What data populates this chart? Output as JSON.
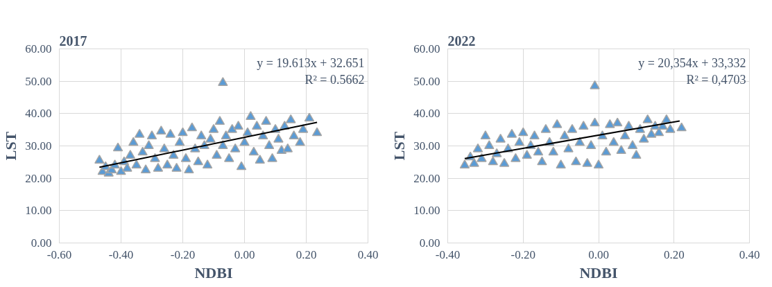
{
  "chart_data": [
    {
      "type": "scatter",
      "title": "2017",
      "xlabel": "NDBI",
      "ylabel": "LST",
      "xlim": [
        -0.6,
        0.4
      ],
      "ylim": [
        0,
        60
      ],
      "xticks": [
        {
          "value": -0.6,
          "label": "-0.60"
        },
        {
          "value": -0.4,
          "label": "-0.40"
        },
        {
          "value": -0.2,
          "label": "-0.20"
        },
        {
          "value": 0,
          "label": "0.00"
        },
        {
          "value": 0.2,
          "label": "0.20"
        },
        {
          "value": 0.4,
          "label": "0.40"
        }
      ],
      "yticks": [
        {
          "value": 0,
          "label": "0.00"
        },
        {
          "value": 10,
          "label": "10.00"
        },
        {
          "value": 20,
          "label": "20.00"
        },
        {
          "value": 30,
          "label": "30.00"
        },
        {
          "value": 40,
          "label": "40.00"
        },
        {
          "value": 50,
          "label": "50.00"
        },
        {
          "value": 60,
          "label": "60.00"
        }
      ],
      "grid": true,
      "annotations": [
        "y = 19.613x + 32.651",
        "R² = 0.5662"
      ],
      "series": [
        {
          "color": "#5b9bd5",
          "marker": "triangle",
          "x": [
            -0.47,
            -0.46,
            -0.45,
            -0.44,
            -0.43,
            -0.42,
            -0.41,
            -0.4,
            -0.39,
            -0.38,
            -0.37,
            -0.36,
            -0.35,
            -0.34,
            -0.33,
            -0.32,
            -0.31,
            -0.3,
            -0.29,
            -0.28,
            -0.27,
            -0.26,
            -0.25,
            -0.24,
            -0.23,
            -0.22,
            -0.21,
            -0.2,
            -0.19,
            -0.18,
            -0.17,
            -0.16,
            -0.15,
            -0.14,
            -0.13,
            -0.12,
            -0.11,
            -0.1,
            -0.09,
            -0.08,
            -0.07,
            -0.07,
            -0.06,
            -0.05,
            -0.04,
            -0.03,
            -0.02,
            -0.01,
            0.0,
            0.01,
            0.02,
            0.03,
            0.04,
            0.05,
            0.06,
            0.07,
            0.08,
            0.09,
            0.1,
            0.11,
            0.12,
            0.13,
            0.14,
            0.15,
            0.16,
            0.18,
            0.19,
            0.21,
            0.235
          ],
          "values": [
            25.5,
            22,
            23.5,
            21.5,
            22.5,
            24,
            29.3,
            22,
            25,
            23,
            27,
            31,
            24,
            33.5,
            28,
            22.5,
            30,
            33,
            26,
            23,
            34.5,
            29,
            24,
            33.5,
            27,
            23,
            31,
            34,
            26,
            22.5,
            35.5,
            29,
            25,
            33,
            30,
            24,
            32,
            35,
            27,
            37.5,
            49.5,
            30,
            33,
            26,
            35,
            29,
            36,
            23.5,
            31,
            34,
            39,
            28,
            36,
            25.5,
            33,
            37.5,
            30,
            26,
            35,
            32,
            28.5,
            36,
            29,
            38,
            33,
            31,
            35,
            38.5,
            34
          ]
        },
        {
          "type": "line",
          "color": "#000000",
          "marker": "none",
          "x": [
            -0.47,
            0.235
          ],
          "values": [
            23.4,
            37.3
          ]
        }
      ]
    },
    {
      "type": "scatter",
      "title": "2022",
      "xlabel": "NDBI",
      "ylabel": "LST",
      "xlim": [
        -0.4,
        0.4
      ],
      "ylim": [
        0,
        60
      ],
      "xticks": [
        {
          "value": -0.4,
          "label": "-0.40"
        },
        {
          "value": -0.2,
          "label": "-0.20"
        },
        {
          "value": 0,
          "label": "0.00"
        },
        {
          "value": 0.2,
          "label": "0.20"
        },
        {
          "value": 0.4,
          "label": "0.40"
        }
      ],
      "yticks": [
        {
          "value": 0,
          "label": "0.00"
        },
        {
          "value": 10,
          "label": "10.00"
        },
        {
          "value": 20,
          "label": "20.00"
        },
        {
          "value": 30,
          "label": "30.00"
        },
        {
          "value": 40,
          "label": "40.00"
        },
        {
          "value": 50,
          "label": "50.00"
        },
        {
          "value": 60,
          "label": "60.00"
        }
      ],
      "grid": true,
      "annotations": [
        "y = 20,354x + 33,332",
        "R² = 0,4703"
      ],
      "series": [
        {
          "color": "#5b9bd5",
          "marker": "triangle",
          "x": [
            -0.355,
            -0.34,
            -0.33,
            -0.32,
            -0.31,
            -0.3,
            -0.29,
            -0.28,
            -0.27,
            -0.26,
            -0.25,
            -0.24,
            -0.23,
            -0.22,
            -0.21,
            -0.2,
            -0.19,
            -0.18,
            -0.17,
            -0.16,
            -0.15,
            -0.14,
            -0.13,
            -0.12,
            -0.11,
            -0.1,
            -0.09,
            -0.08,
            -0.07,
            -0.06,
            -0.05,
            -0.04,
            -0.03,
            -0.02,
            -0.01,
            -0.01,
            0.0,
            0.01,
            0.02,
            0.03,
            0.04,
            0.05,
            0.06,
            0.07,
            0.08,
            0.09,
            0.1,
            0.11,
            0.12,
            0.13,
            0.14,
            0.15,
            0.16,
            0.17,
            0.18,
            0.19,
            0.22
          ],
          "values": [
            24,
            26.5,
            24.5,
            29,
            26,
            33,
            30,
            25,
            27.5,
            32,
            24.5,
            29,
            33.5,
            26,
            31,
            34,
            27,
            30,
            33,
            28,
            25,
            35,
            31,
            28,
            36.5,
            24,
            33,
            29,
            35,
            25,
            31,
            36,
            24.5,
            30,
            48.5,
            37,
            24,
            33,
            28,
            36.5,
            31,
            37,
            28.5,
            33,
            36,
            30,
            27,
            35,
            32,
            38,
            33.5,
            36,
            34,
            36,
            38,
            35,
            35.5
          ]
        },
        {
          "type": "line",
          "color": "#000000",
          "marker": "none",
          "x": [
            -0.355,
            0.215
          ],
          "values": [
            26.1,
            37.7
          ]
        }
      ]
    }
  ]
}
